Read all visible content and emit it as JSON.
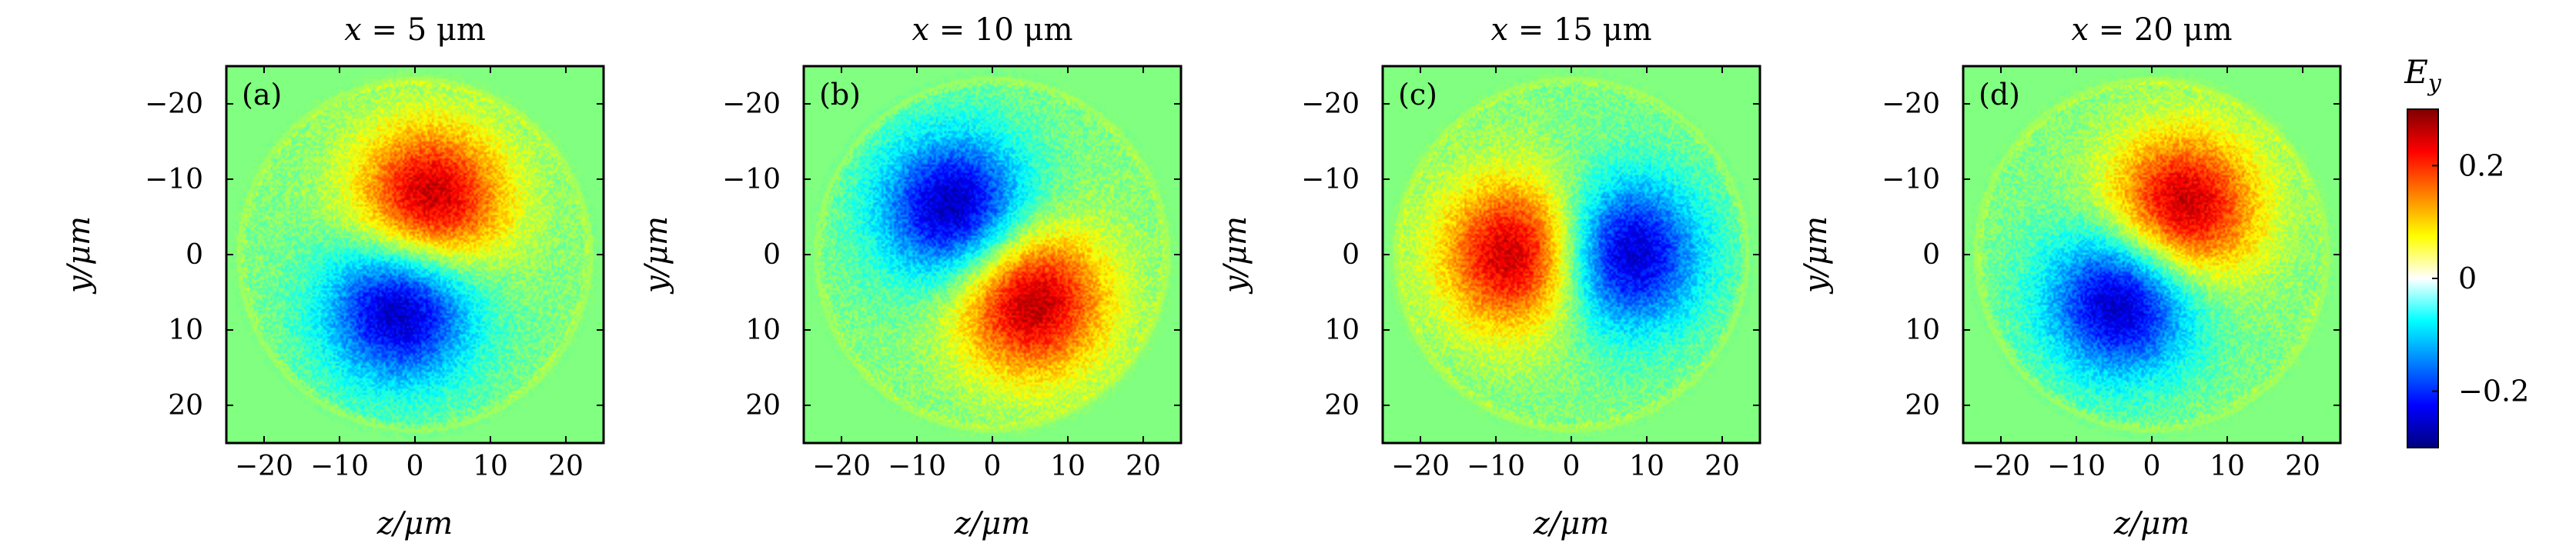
{
  "figure": {
    "colorbar": {
      "label": "E_y",
      "label_symbol": "E",
      "label_subscript": "y",
      "ticks": [
        {
          "value": 0.2,
          "label": "0.2"
        },
        {
          "value": 0,
          "label": "0"
        },
        {
          "value": -0.2,
          "label": "−0.2"
        }
      ],
      "range": [
        -0.3,
        0.3
      ],
      "colormap": "jet"
    }
  },
  "chart_data": [
    {
      "type": "heatmap",
      "panel_label": "(a)",
      "title": "x = 5 μm",
      "title_var": "x",
      "title_rest": " = 5 μm",
      "xlabel": "z/μm",
      "ylabel": "y/μm",
      "xlim": [
        -25,
        25
      ],
      "ylim": [
        -25,
        25
      ],
      "y_axis_inverted": true,
      "xticks": [
        {
          "value": -20,
          "label": "−20"
        },
        {
          "value": -10,
          "label": "−10"
        },
        {
          "value": 0,
          "label": "0"
        },
        {
          "value": 10,
          "label": "10"
        },
        {
          "value": 20,
          "label": "20"
        }
      ],
      "yticks": [
        {
          "value": -20,
          "label": "−20"
        },
        {
          "value": -10,
          "label": "−10"
        },
        {
          "value": 0,
          "label": "0"
        },
        {
          "value": 10,
          "label": "10"
        },
        {
          "value": 20,
          "label": "20"
        }
      ],
      "aperture_radius": 23,
      "lobes": [
        {
          "z": 2,
          "y": -7,
          "value": 0.28
        },
        {
          "z": -2,
          "y": 7,
          "value": -0.28
        }
      ]
    },
    {
      "type": "heatmap",
      "panel_label": "(b)",
      "title": "x = 10 μm",
      "title_var": "x",
      "title_rest": " = 10 μm",
      "xlabel": "z/μm",
      "ylabel": "y/μm",
      "xlim": [
        -25,
        25
      ],
      "ylim": [
        -25,
        25
      ],
      "y_axis_inverted": true,
      "xticks": [
        {
          "value": -20,
          "label": "−20"
        },
        {
          "value": -10,
          "label": "−10"
        },
        {
          "value": 0,
          "label": "0"
        },
        {
          "value": 10,
          "label": "10"
        },
        {
          "value": 20,
          "label": "20"
        }
      ],
      "yticks": [
        {
          "value": -20,
          "label": "−20"
        },
        {
          "value": -10,
          "label": "−10"
        },
        {
          "value": 0,
          "label": "0"
        },
        {
          "value": 10,
          "label": "10"
        },
        {
          "value": 20,
          "label": "20"
        }
      ],
      "aperture_radius": 23,
      "lobes": [
        {
          "z": -5,
          "y": -6,
          "value": -0.28
        },
        {
          "z": 5,
          "y": 6,
          "value": 0.28
        }
      ]
    },
    {
      "type": "heatmap",
      "panel_label": "(c)",
      "title": "x = 15 μm",
      "title_var": "x",
      "title_rest": " = 15 μm",
      "xlabel": "z/μm",
      "ylabel": "y/μm",
      "xlim": [
        -25,
        25
      ],
      "ylim": [
        -25,
        25
      ],
      "y_axis_inverted": true,
      "xticks": [
        {
          "value": -20,
          "label": "−20"
        },
        {
          "value": -10,
          "label": "−10"
        },
        {
          "value": 0,
          "label": "0"
        },
        {
          "value": 10,
          "label": "10"
        },
        {
          "value": 20,
          "label": "20"
        }
      ],
      "yticks": [
        {
          "value": -20,
          "label": "−20"
        },
        {
          "value": -10,
          "label": "−10"
        },
        {
          "value": 0,
          "label": "0"
        },
        {
          "value": 10,
          "label": "10"
        },
        {
          "value": 20,
          "label": "20"
        }
      ],
      "aperture_radius": 23,
      "lobes": [
        {
          "z": -7,
          "y": 0,
          "value": 0.28
        },
        {
          "z": 7,
          "y": 0,
          "value": -0.28
        }
      ]
    },
    {
      "type": "heatmap",
      "panel_label": "(d)",
      "title": "x = 20 μm",
      "title_var": "x",
      "title_rest": " = 20 μm",
      "xlabel": "z/μm",
      "ylabel": "y/μm",
      "xlim": [
        -25,
        25
      ],
      "ylim": [
        -25,
        25
      ],
      "y_axis_inverted": true,
      "xticks": [
        {
          "value": -20,
          "label": "−20"
        },
        {
          "value": -10,
          "label": "−10"
        },
        {
          "value": 0,
          "label": "0"
        },
        {
          "value": 10,
          "label": "10"
        },
        {
          "value": 20,
          "label": "20"
        }
      ],
      "yticks": [
        {
          "value": -20,
          "label": "−20"
        },
        {
          "value": -10,
          "label": "−10"
        },
        {
          "value": 0,
          "label": "0"
        },
        {
          "value": 10,
          "label": "10"
        },
        {
          "value": 20,
          "label": "20"
        }
      ],
      "aperture_radius": 23,
      "lobes": [
        {
          "z": 4,
          "y": -6,
          "value": 0.28
        },
        {
          "z": -4,
          "y": 6,
          "value": -0.28
        }
      ]
    }
  ]
}
